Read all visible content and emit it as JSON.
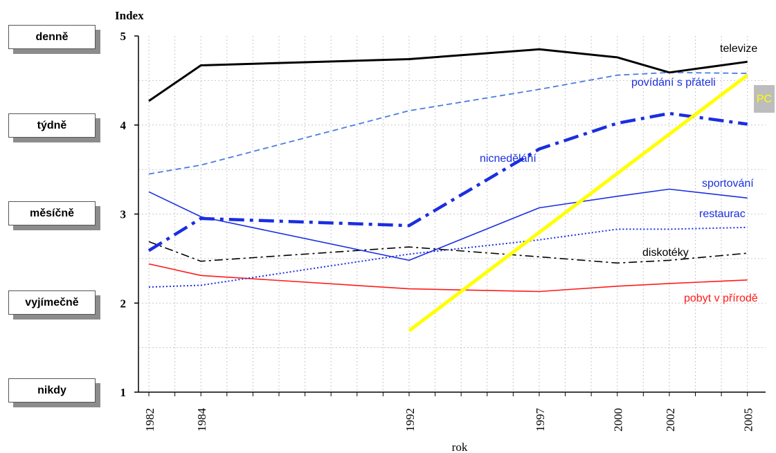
{
  "frequency_labels": [
    "denně",
    "týdně",
    "měsíčně",
    "vyjímečně",
    "nikdy"
  ],
  "chart_data": {
    "type": "line",
    "ylabel": "Index",
    "xlabel": "rok",
    "ylim": [
      1,
      5
    ],
    "yticks": [
      1,
      2,
      3,
      4,
      5
    ],
    "xlim": [
      1981.6,
      2005.7
    ],
    "xticks": [
      1982,
      1984,
      1992,
      1997,
      2000,
      2002,
      2005
    ],
    "grid": true,
    "series": [
      {
        "name": "televize",
        "color": "#000000",
        "style": "solid-thick",
        "points": [
          [
            1982,
            4.27
          ],
          [
            1984,
            4.67
          ],
          [
            1992,
            4.74
          ],
          [
            1997,
            4.85
          ],
          [
            2000,
            4.76
          ],
          [
            2002,
            4.59
          ],
          [
            2005,
            4.71
          ]
        ]
      },
      {
        "name": "povídání s přáteli",
        "color": "#4a7be0",
        "style": "dashed",
        "points": [
          [
            1982,
            3.45
          ],
          [
            1984,
            3.55
          ],
          [
            1992,
            4.16
          ],
          [
            1997,
            4.4
          ],
          [
            2000,
            4.56
          ],
          [
            2002,
            4.59
          ],
          [
            2005,
            4.58
          ]
        ]
      },
      {
        "name": "PC",
        "color": "#ffff00",
        "style": "solid-very-thick",
        "points": [
          [
            1992,
            1.69
          ],
          [
            2005,
            4.56
          ]
        ]
      },
      {
        "name": "nicnedělání",
        "color": "#1a2ee0",
        "style": "dashdot-thick",
        "points": [
          [
            1982,
            2.59
          ],
          [
            1984,
            2.95
          ],
          [
            1992,
            2.87
          ],
          [
            1997,
            3.73
          ],
          [
            2000,
            4.02
          ],
          [
            2002,
            4.13
          ],
          [
            2005,
            4.01
          ]
        ]
      },
      {
        "name": "sportování",
        "color": "#1a2ee0",
        "style": "solid-thin",
        "points": [
          [
            1982,
            3.25
          ],
          [
            1984,
            2.97
          ],
          [
            1992,
            2.48
          ],
          [
            1997,
            3.07
          ],
          [
            2000,
            3.2
          ],
          [
            2002,
            3.28
          ],
          [
            2005,
            3.18
          ]
        ]
      },
      {
        "name": "restaurac",
        "color": "#1a2ee0",
        "style": "dotted",
        "points": [
          [
            1982,
            2.18
          ],
          [
            1984,
            2.2
          ],
          [
            1992,
            2.55
          ],
          [
            1997,
            2.71
          ],
          [
            2000,
            2.83
          ],
          [
            2002,
            2.83
          ],
          [
            2005,
            2.85
          ]
        ]
      },
      {
        "name": "diskotéky",
        "color": "#000000",
        "style": "dashdot-thin",
        "points": [
          [
            1982,
            2.69
          ],
          [
            1984,
            2.47
          ],
          [
            1992,
            2.63
          ],
          [
            1997,
            2.52
          ],
          [
            2000,
            2.45
          ],
          [
            2002,
            2.48
          ],
          [
            2005,
            2.56
          ]
        ]
      },
      {
        "name": "pobyt v přírodě",
        "color": "#ff1a1a",
        "style": "solid-thin",
        "points": [
          [
            1982,
            2.44
          ],
          [
            1984,
            2.31
          ],
          [
            1992,
            2.16
          ],
          [
            1997,
            2.13
          ],
          [
            2000,
            2.19
          ],
          [
            2002,
            2.22
          ],
          [
            2005,
            2.26
          ]
        ]
      }
    ]
  }
}
